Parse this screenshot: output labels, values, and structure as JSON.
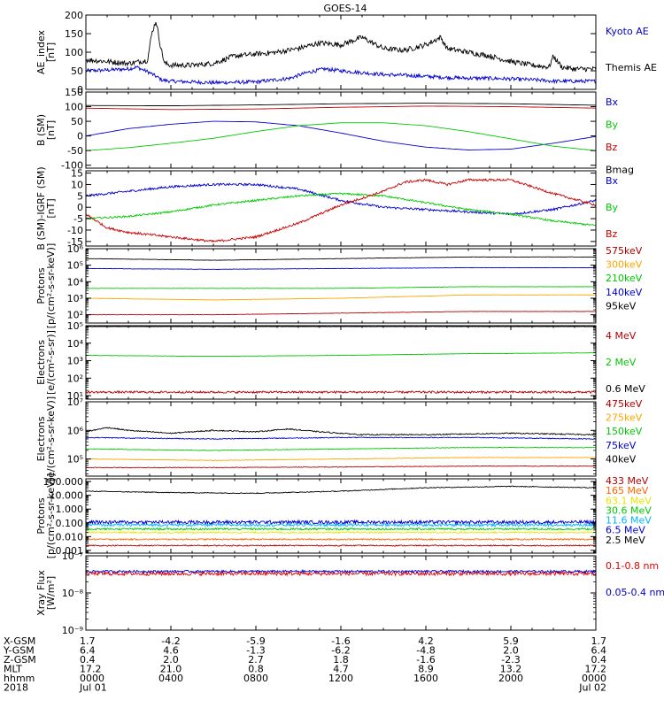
{
  "chart_data": {
    "type": "line",
    "title": "GOES-14",
    "x_ticks": [
      "0000",
      "0400",
      "0800",
      "1200",
      "1600",
      "2000",
      "0000"
    ],
    "panels": [
      {
        "id": "ae",
        "ylabel": [
          "AE_index",
          "[nT]"
        ],
        "scale": "linear",
        "ylim": [
          0,
          200
        ],
        "yticks": [
          "0",
          "50",
          "100",
          "150",
          "200"
        ],
        "ytick_values": [
          0,
          50,
          100,
          150,
          200
        ],
        "series": [
          {
            "name": "Kyoto AE",
            "color": "#0000d0",
            "noise": 5,
            "x": [
              0,
              1,
              2,
              2.4,
              3,
              3.6,
              4,
              6,
              8,
              9.6,
              10.4,
              11.2,
              12,
              13,
              14,
              15,
              16,
              17,
              18,
              19,
              20,
              21.4,
              22,
              23,
              24
            ],
            "y": [
              50,
              52,
              55,
              60,
              45,
              25,
              22,
              18,
              20,
              30,
              45,
              55,
              50,
              45,
              40,
              38,
              35,
              32,
              30,
              30,
              28,
              25,
              22,
              22,
              22
            ]
          },
          {
            "name": "Themis AE",
            "color": "#000000",
            "noise": 7,
            "x": [
              0,
              1,
              2,
              2.9,
              3.1,
              3.3,
              3.5,
              3.7,
              4,
              5,
              6,
              7,
              8,
              9,
              10,
              11,
              12,
              12.5,
              13,
              13.5,
              14,
              15,
              16,
              16.7,
              17,
              18,
              19,
              20,
              21,
              21.8,
              22,
              22.4,
              23,
              24
            ],
            "y": [
              80,
              75,
              70,
              78,
              150,
              185,
              120,
              70,
              65,
              65,
              70,
              90,
              95,
              100,
              110,
              125,
              120,
              130,
              140,
              125,
              110,
              105,
              120,
              140,
              110,
              100,
              90,
              75,
              65,
              60,
              90,
              60,
              55,
              55
            ]
          }
        ]
      },
      {
        "id": "bsm",
        "ylabel": [
          "B (SM)",
          "[nT]"
        ],
        "scale": "linear",
        "ylim": [
          -110,
          150
        ],
        "yticks": [
          "150",
          "100",
          "50",
          "0",
          "-50",
          "-100"
        ],
        "ytick_values": [
          150,
          100,
          50,
          0,
          -50,
          -100
        ],
        "series": [
          {
            "name": "Bx",
            "color": "#0000d0",
            "noise": 0,
            "x": [
              0,
              2,
              4,
              6,
              8,
              10,
              12,
              14,
              16,
              18,
              20,
              22,
              24
            ],
            "y": [
              0,
              25,
              40,
              50,
              48,
              35,
              10,
              -18,
              -38,
              -48,
              -45,
              -25,
              -2
            ]
          },
          {
            "name": "By",
            "color": "#00c800",
            "noise": 0,
            "x": [
              0,
              2,
              4,
              6,
              8,
              10,
              12,
              14,
              16,
              18,
              20,
              22,
              24
            ],
            "y": [
              -50,
              -40,
              -25,
              -8,
              15,
              35,
              45,
              45,
              35,
              15,
              -10,
              -35,
              -50
            ]
          },
          {
            "name": "Bz",
            "color": "#c80000",
            "noise": 0,
            "x": [
              0,
              4,
              8,
              12,
              16,
              20,
              24
            ],
            "y": [
              95,
              90,
              92,
              98,
              102,
              100,
              95
            ]
          },
          {
            "name": "Bmag",
            "color": "#000000",
            "noise": 0,
            "x": [
              0,
              4,
              8,
              12,
              16,
              20,
              24
            ],
            "y": [
              104,
              103,
              106,
              110,
              112,
              110,
              105
            ]
          }
        ]
      },
      {
        "id": "bsmigrf",
        "ylabel": [
          "B (SM)-IGRF (SM)",
          "[nT]"
        ],
        "scale": "linear",
        "ylim": [
          -17,
          16
        ],
        "yticks": [
          "15",
          "10",
          "5",
          "0",
          "-5",
          "-10",
          "-15"
        ],
        "ytick_values": [
          15,
          10,
          5,
          0,
          -5,
          -10,
          -15
        ],
        "series": [
          {
            "name": "Bx",
            "color": "#0000d0",
            "noise": 0.5,
            "x": [
              0,
              2,
              4,
              6,
              8,
              10,
              12,
              14,
              16,
              18,
              20,
              22,
              24
            ],
            "y": [
              5,
              7,
              9,
              10,
              10,
              8,
              3,
              0,
              -1,
              -2,
              -3,
              -1,
              3
            ]
          },
          {
            "name": "By",
            "color": "#00c800",
            "noise": 0.4,
            "x": [
              0,
              2,
              4,
              6,
              8,
              10,
              12,
              14,
              16,
              18,
              20,
              22,
              24
            ],
            "y": [
              -5,
              -4,
              -2,
              1,
              3,
              5,
              6,
              5,
              2,
              -1,
              -3,
              -6,
              -8
            ]
          },
          {
            "name": "Bz",
            "color": "#c80000",
            "noise": 0.5,
            "x": [
              0,
              1,
              2,
              4,
              6,
              8,
              10,
              12,
              14,
              15,
              16,
              17,
              18,
              20,
              22,
              24
            ],
            "y": [
              -3,
              -9,
              -11,
              -13,
              -15,
              -13,
              -7,
              1,
              7,
              11,
              12,
              10,
              12,
              12,
              6,
              1
            ]
          }
        ]
      },
      {
        "id": "protons_low",
        "ylabel": [
          "Protons",
          "[p/(cm²-s-sr-keV)]"
        ],
        "scale": "log",
        "ylim": [
          1.5,
          6
        ],
        "yticks": [
          "10²",
          "10³",
          "10⁴",
          "10⁵",
          "10⁶"
        ],
        "ytick_values": [
          2,
          3,
          4,
          5,
          6
        ],
        "series": [
          {
            "name": "575keV",
            "color": "#b40000",
            "noise": 0.01,
            "x": [
              0,
              6,
              12,
              18,
              24
            ],
            "y": [
              2.0,
              2.0,
              2.1,
              2.2,
              2.2
            ]
          },
          {
            "name": "300keV",
            "color": "#ffa500",
            "noise": 0.01,
            "x": [
              0,
              6,
              12,
              18,
              24
            ],
            "y": [
              3.0,
              2.9,
              3.0,
              3.2,
              3.2
            ]
          },
          {
            "name": "210keV",
            "color": "#00c800",
            "noise": 0.01,
            "x": [
              0,
              6,
              12,
              18,
              24
            ],
            "y": [
              3.6,
              3.6,
              3.6,
              3.7,
              3.7
            ]
          },
          {
            "name": "140keV",
            "color": "#0000d0",
            "noise": 0.01,
            "x": [
              0,
              6,
              12,
              18,
              24
            ],
            "y": [
              4.8,
              4.75,
              4.8,
              4.85,
              4.85
            ]
          },
          {
            "name": "95keV",
            "color": "#000000",
            "noise": 0.01,
            "x": [
              0,
              6,
              12,
              18,
              24
            ],
            "y": [
              5.4,
              5.3,
              5.4,
              5.5,
              5.5
            ]
          }
        ]
      },
      {
        "id": "electrons_mev",
        "ylabel": [
          "Electrons",
          "[e/(cm²-s-sr)]"
        ],
        "scale": "log",
        "ylim": [
          0.8,
          5
        ],
        "yticks": [
          "10¹",
          "10²",
          "10³",
          "10⁴",
          "10⁵"
        ],
        "ytick_values": [
          1,
          2,
          3,
          4,
          5
        ],
        "series": [
          {
            "name": "4 MeV",
            "color": "#b40000",
            "noise": 0.06,
            "x": [
              0,
              24
            ],
            "y": [
              1.2,
              1.2
            ]
          },
          {
            "name": "2 MeV",
            "color": "#00c800",
            "noise": 0.01,
            "x": [
              0,
              6,
              12,
              18,
              24
            ],
            "y": [
              3.3,
              3.25,
              3.3,
              3.4,
              3.45
            ]
          },
          {
            "name": "0.6 MeV",
            "color": "#000000",
            "noise": 0.01,
            "x": [
              0,
              24
            ],
            "y": [
              4.95,
              4.95
            ]
          }
        ]
      },
      {
        "id": "electrons_kev",
        "ylabel": [
          "Electrons",
          "[e/(cm²-s-sr-keV)]"
        ],
        "scale": "log",
        "ylim": [
          4.4,
          7
        ],
        "yticks": [
          "10⁵",
          "10⁶",
          "10⁷"
        ],
        "ytick_values": [
          5,
          6,
          7
        ],
        "series": [
          {
            "name": "475keV",
            "color": "#b40000",
            "noise": 0.01,
            "x": [
              0,
              6,
              12,
              18,
              24
            ],
            "y": [
              4.7,
              4.7,
              4.72,
              4.75,
              4.75
            ]
          },
          {
            "name": "275keV",
            "color": "#ffa500",
            "noise": 0.01,
            "x": [
              0,
              6,
              12,
              18,
              24
            ],
            "y": [
              5.0,
              4.95,
              5.0,
              5.05,
              5.05
            ]
          },
          {
            "name": "150keV",
            "color": "#00c800",
            "noise": 0.01,
            "x": [
              0,
              6,
              12,
              18,
              24
            ],
            "y": [
              5.35,
              5.3,
              5.35,
              5.4,
              5.4
            ]
          },
          {
            "name": "75keV",
            "color": "#0000d0",
            "noise": 0.015,
            "x": [
              0,
              6,
              12,
              18,
              24
            ],
            "y": [
              5.75,
              5.7,
              5.75,
              5.75,
              5.7
            ]
          },
          {
            "name": "40keV",
            "color": "#000000",
            "noise": 0.02,
            "x": [
              0,
              1,
              2,
              4,
              6,
              8,
              9.5,
              11,
              13,
              16,
              20,
              24
            ],
            "y": [
              5.95,
              6.1,
              6.0,
              5.9,
              6.0,
              5.95,
              6.05,
              5.95,
              5.85,
              5.85,
              5.9,
              5.85
            ]
          }
        ]
      },
      {
        "id": "protons_high",
        "ylabel": [
          "Protons",
          "[p/(cm²-s-sr-keV)]"
        ],
        "scale": "log",
        "ylim": [
          -3.2,
          2.2
        ],
        "yticks": [
          "0.001",
          "0.010",
          "0.100",
          "1.000",
          "10.000",
          "100.000"
        ],
        "ytick_values": [
          -3,
          -2,
          -1,
          0,
          1,
          2
        ],
        "series": [
          {
            "name": "433 MeV",
            "color": "#b40000",
            "noise": 0.04,
            "x": [
              0,
              24
            ],
            "y": [
              -2.65,
              -2.65
            ]
          },
          {
            "name": "165 MeV",
            "color": "#ff6400",
            "noise": 0.05,
            "x": [
              0,
              24
            ],
            "y": [
              -2.2,
              -2.2
            ]
          },
          {
            "name": "63.1 MeV",
            "color": "#e6e600",
            "noise": 0.06,
            "x": [
              0,
              24
            ],
            "y": [
              -1.7,
              -1.7
            ]
          },
          {
            "name": "30.6 MeV",
            "color": "#00c800",
            "noise": 0.07,
            "x": [
              0,
              24
            ],
            "y": [
              -1.45,
              -1.45
            ]
          },
          {
            "name": "11.6 MeV",
            "color": "#00b4ff",
            "noise": 0.1,
            "x": [
              0,
              24
            ],
            "y": [
              -1.15,
              -1.15
            ]
          },
          {
            "name": "6.5 MeV",
            "color": "#0000d0",
            "noise": 0.12,
            "x": [
              0,
              24
            ],
            "y": [
              -0.95,
              -0.95
            ]
          },
          {
            "name": "2.5 MeV",
            "color": "#000000",
            "noise": 0.03,
            "x": [
              0,
              4,
              8,
              12,
              16,
              20,
              22,
              24
            ],
            "y": [
              1.3,
              1.2,
              1.15,
              1.3,
              1.55,
              1.65,
              1.6,
              1.55
            ]
          }
        ]
      },
      {
        "id": "xray",
        "ylabel": [
          "Xray Flux",
          "[W/m²]"
        ],
        "scale": "log",
        "ylim": [
          -9,
          -7
        ],
        "yticks": [
          "10⁻⁹",
          "10⁻⁸",
          "10⁻⁷"
        ],
        "ytick_values": [
          -9,
          -8,
          -7
        ],
        "series": [
          {
            "name": "0.1-0.8 nm",
            "color": "#e60000",
            "noise": 0.05,
            "x": [
              0,
              24
            ],
            "y": [
              -7.48,
              -7.48
            ]
          },
          {
            "name": "0.05-0.4 nm",
            "color": "#0000d0",
            "noise": 0.03,
            "x": [
              0,
              24
            ],
            "y": [
              -7.42,
              -7.42
            ]
          }
        ]
      }
    ],
    "ephemeris": {
      "labels": [
        "X-GSM",
        "Y-GSM",
        "Z-GSM",
        "MLT",
        "hhmm",
        "2018"
      ],
      "columns": [
        [
          "1.7",
          "6.4",
          "0.4",
          "17.2",
          "0000",
          "Jul 01"
        ],
        [
          "-4.2",
          "4.6",
          "2.0",
          "21.0",
          "0400",
          ""
        ],
        [
          "-5.9",
          "-1.3",
          "2.7",
          "0.8",
          "0800",
          ""
        ],
        [
          "-1.6",
          "-6.2",
          "1.8",
          "4.7",
          "1200",
          ""
        ],
        [
          "4.2",
          "-4.8",
          "-1.6",
          "8.9",
          "1600",
          ""
        ],
        [
          "5.9",
          "2.0",
          "-2.3",
          "13.2",
          "2000",
          ""
        ],
        [
          "1.7",
          "6.4",
          "0.4",
          "17.2",
          "0000",
          "Jul 02"
        ]
      ]
    }
  }
}
